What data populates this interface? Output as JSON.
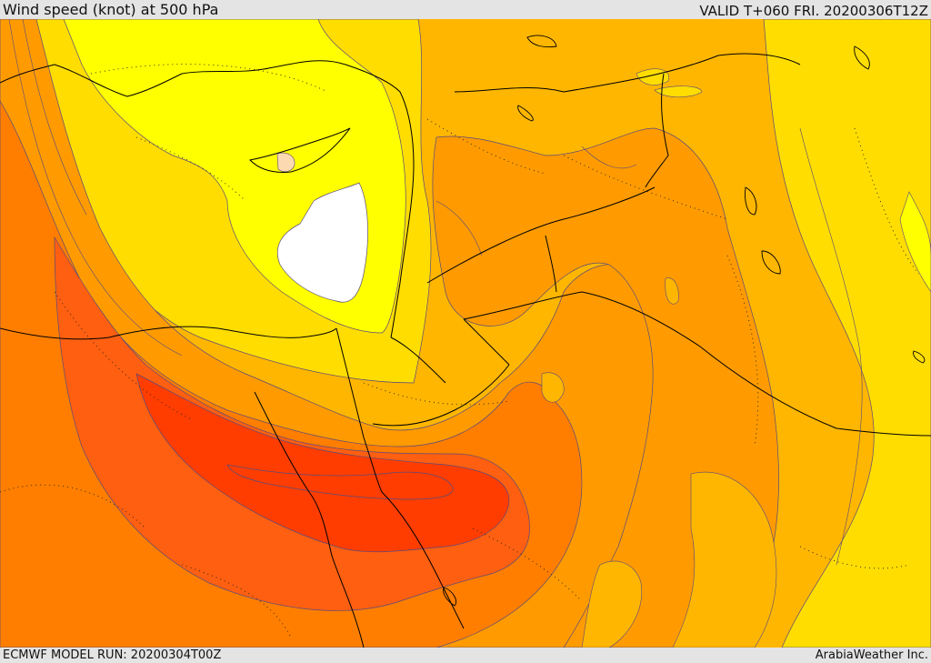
{
  "header": {
    "title": "Wind speed (knot) at 500 hPa",
    "valid_time": "VALID T+060 FRI. 20200306T12Z"
  },
  "footer": {
    "model_run": "ECMWF MODEL RUN: 20200304T00Z",
    "credit": "ArabiaWeather Inc."
  },
  "legend_colors": {
    "lowest": "#ffffff",
    "very_low": "#fcd9b0",
    "low": "#ffff00",
    "moderate": "#ffdd00",
    "moderate_high": "#ffb600",
    "high": "#ff9b00",
    "very_high": "#ff7e00",
    "strong": "#ff5f10",
    "strongest": "#ff3d00",
    "contour_line": "#5a4a7a",
    "border_line": "#000000"
  }
}
